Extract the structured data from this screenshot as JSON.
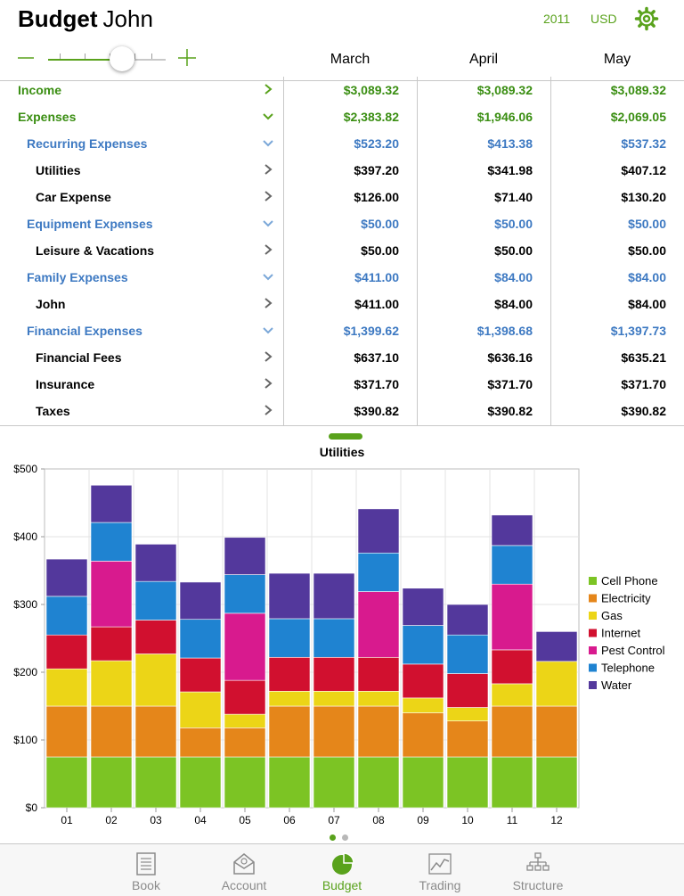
{
  "header": {
    "title_bold": "Budget",
    "title_name": "John",
    "year": "2011",
    "currency": "USD"
  },
  "zoom": {
    "level": 0.55
  },
  "months": [
    "March",
    "April",
    "May"
  ],
  "rows": [
    {
      "label": "Income",
      "level": 0,
      "style": "green",
      "chevron": "right",
      "values": [
        "$3,089.32",
        "$3,089.32",
        "$3,089.32"
      ]
    },
    {
      "label": "Expenses",
      "level": 0,
      "style": "green",
      "chevron": "down",
      "values": [
        "$2,383.82",
        "$1,946.06",
        "$2,069.05"
      ]
    },
    {
      "label": "Recurring Expenses",
      "level": 1,
      "style": "blue",
      "chevron": "down",
      "values": [
        "$523.20",
        "$413.38",
        "$537.32"
      ]
    },
    {
      "label": "Utilities",
      "level": 2,
      "style": "black",
      "chevron": "right",
      "values": [
        "$397.20",
        "$341.98",
        "$407.12"
      ]
    },
    {
      "label": "Car Expense",
      "level": 2,
      "style": "black",
      "chevron": "right",
      "values": [
        "$126.00",
        "$71.40",
        "$130.20"
      ]
    },
    {
      "label": "Equipment Expenses",
      "level": 1,
      "style": "blue",
      "chevron": "down",
      "values": [
        "$50.00",
        "$50.00",
        "$50.00"
      ]
    },
    {
      "label": "Leisure & Vacations",
      "level": 2,
      "style": "black",
      "chevron": "right",
      "values": [
        "$50.00",
        "$50.00",
        "$50.00"
      ]
    },
    {
      "label": "Family Expenses",
      "level": 1,
      "style": "blue",
      "chevron": "down",
      "values": [
        "$411.00",
        "$84.00",
        "$84.00"
      ]
    },
    {
      "label": "John",
      "level": 2,
      "style": "black",
      "chevron": "right",
      "values": [
        "$411.00",
        "$84.00",
        "$84.00"
      ]
    },
    {
      "label": "Financial Expenses",
      "level": 1,
      "style": "blue",
      "chevron": "down",
      "values": [
        "$1,399.62",
        "$1,398.68",
        "$1,397.73"
      ]
    },
    {
      "label": "Financial Fees",
      "level": 2,
      "style": "black",
      "chevron": "right",
      "values": [
        "$637.10",
        "$636.16",
        "$635.21"
      ]
    },
    {
      "label": "Insurance",
      "level": 2,
      "style": "black",
      "chevron": "right",
      "values": [
        "$371.70",
        "$371.70",
        "$371.70"
      ]
    },
    {
      "label": "Taxes",
      "level": 2,
      "style": "black",
      "chevron": "right",
      "values": [
        "$390.82",
        "$390.82",
        "$390.82"
      ]
    }
  ],
  "chart_data": {
    "type": "bar",
    "stacked": true,
    "title": "Utilities",
    "categories": [
      "01",
      "02",
      "03",
      "04",
      "05",
      "06",
      "07",
      "08",
      "09",
      "10",
      "11",
      "12"
    ],
    "ylim": [
      0,
      500
    ],
    "yticks": [
      "$0",
      "$100",
      "$200",
      "$300",
      "$400",
      "$500"
    ],
    "grid": true,
    "legend_position": "right",
    "series": [
      {
        "name": "Cell Phone",
        "color": "#7cc424",
        "values": [
          75,
          75,
          75,
          75,
          75,
          75,
          75,
          75,
          75,
          75,
          75,
          75
        ]
      },
      {
        "name": "Electricity",
        "color": "#e5861a",
        "values": [
          75,
          75,
          75,
          43,
          43,
          75,
          75,
          75,
          65,
          53,
          75,
          75
        ]
      },
      {
        "name": "Gas",
        "color": "#ecd517",
        "values": [
          55,
          67,
          77,
          53,
          20,
          22,
          22,
          22,
          22,
          20,
          33,
          66
        ]
      },
      {
        "name": "Internet",
        "color": "#d1102f",
        "values": [
          50,
          50,
          50,
          50,
          50,
          50,
          50,
          50,
          50,
          50,
          50,
          0
        ]
      },
      {
        "name": "Pest Control",
        "color": "#d81a8e",
        "values": [
          0,
          97,
          0,
          0,
          99,
          0,
          0,
          97,
          0,
          0,
          97,
          0
        ]
      },
      {
        "name": "Telephone",
        "color": "#1f83d1",
        "values": [
          57,
          57,
          57,
          57,
          57,
          57,
          57,
          57,
          57,
          57,
          57,
          0
        ]
      },
      {
        "name": "Water",
        "color": "#53389c",
        "values": [
          55,
          55,
          55,
          55,
          55,
          67,
          67,
          65,
          55,
          45,
          45,
          44
        ]
      }
    ]
  },
  "pager": {
    "pages": 2,
    "active": 0
  },
  "tabs": [
    {
      "label": "Book",
      "icon": "book-icon"
    },
    {
      "label": "Account",
      "icon": "account-icon"
    },
    {
      "label": "Budget",
      "icon": "budget-pie-icon",
      "active": true
    },
    {
      "label": "Trading",
      "icon": "trading-chart-icon"
    },
    {
      "label": "Structure",
      "icon": "structure-icon"
    }
  ]
}
